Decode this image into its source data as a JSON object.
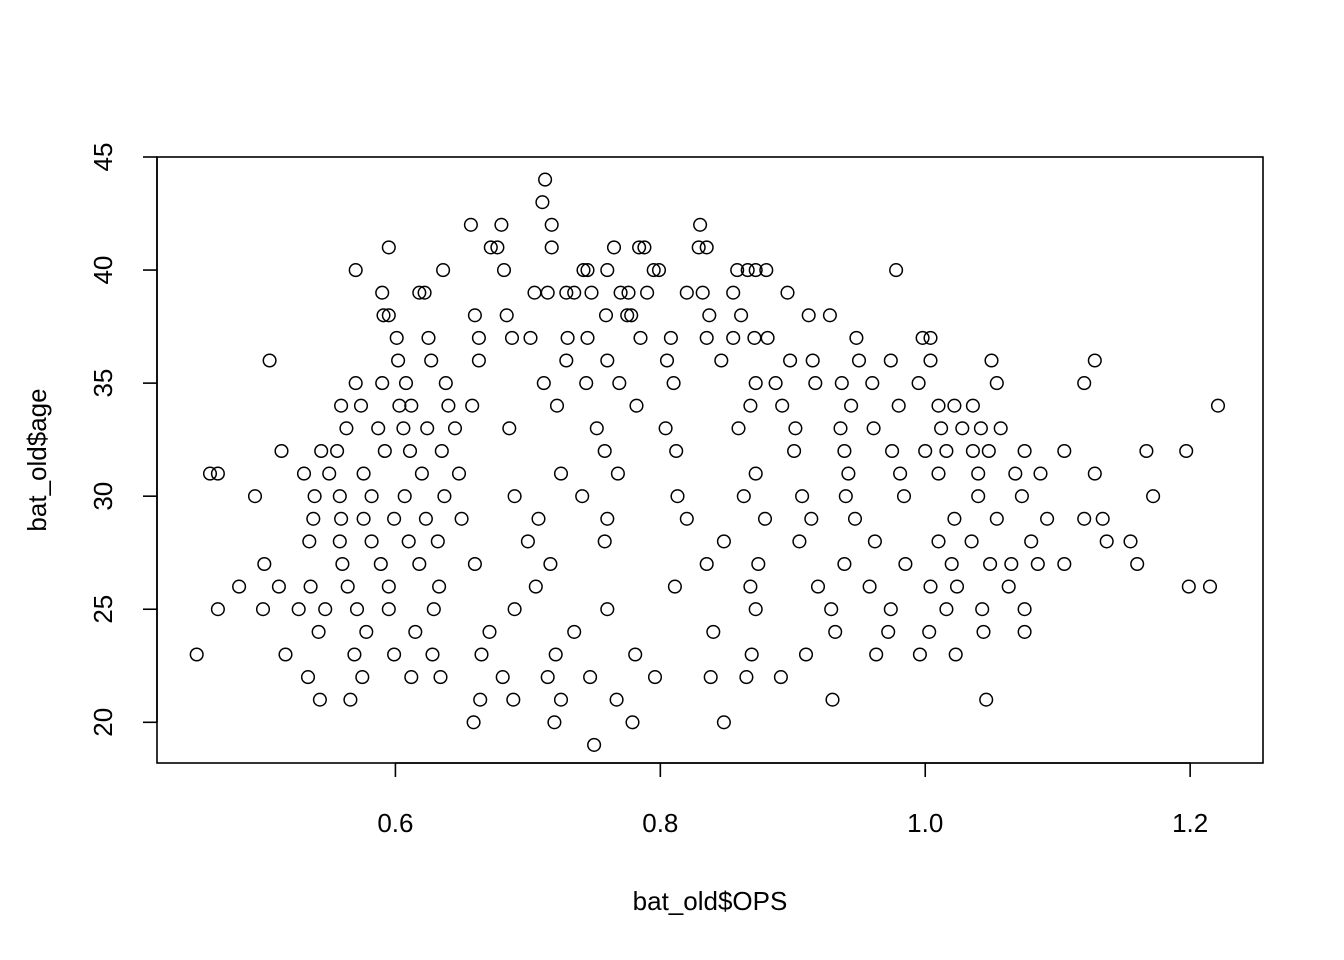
{
  "chart_data": {
    "type": "scatter",
    "title": "",
    "xlabel": "bat_old$OPS",
    "ylabel": "bat_old$age",
    "xlim": [
      0.42,
      1.255
    ],
    "ylim": [
      18.2,
      45
    ],
    "x_ticks": [
      0.6,
      0.8,
      1.0,
      1.2
    ],
    "x_tick_labels": [
      "0.6",
      "0.8",
      "1.0",
      "1.2"
    ],
    "y_ticks": [
      20,
      25,
      30,
      35,
      40,
      45
    ],
    "y_tick_labels": [
      "20",
      "25",
      "30",
      "35",
      "40",
      "45"
    ],
    "grid": false,
    "legend": "none",
    "marker": "open-circle",
    "point_color": "#000000",
    "series": [
      {
        "x": [
          0.713,
          0.711,
          0.657,
          0.68,
          0.718,
          0.83,
          0.595,
          0.672,
          0.677,
          0.718,
          0.765,
          0.784,
          0.788,
          0.835,
          0.829,
          0.57,
          0.636,
          0.682,
          0.76,
          0.742,
          0.745,
          0.795,
          0.799,
          0.858,
          0.872,
          0.866,
          0.88,
          0.978,
          0.59,
          0.618,
          0.622,
          0.705,
          0.715,
          0.729,
          0.735,
          0.748,
          0.77,
          0.776,
          0.79,
          0.82,
          0.832,
          0.855,
          0.896,
          0.591,
          0.595,
          0.66,
          0.684,
          0.759,
          0.775,
          0.778,
          0.837,
          0.861,
          0.912,
          0.928,
          0.601,
          0.625,
          0.663,
          0.688,
          0.702,
          0.73,
          0.745,
          0.785,
          0.808,
          0.835,
          0.855,
          0.871,
          0.881,
          0.948,
          0.998,
          1.004,
          0.505,
          0.602,
          0.627,
          0.663,
          0.729,
          0.76,
          0.805,
          0.846,
          0.898,
          0.915,
          0.95,
          0.974,
          1.004,
          1.05,
          1.12,
          1.128,
          0.57,
          0.59,
          0.608,
          0.638,
          0.712,
          0.744,
          0.769,
          0.81,
          0.872,
          0.887,
          0.917,
          0.937,
          0.96,
          0.995,
          1.054,
          0.559,
          0.574,
          0.603,
          0.612,
          0.64,
          0.658,
          0.722,
          0.782,
          0.868,
          0.892,
          0.944,
          0.98,
          1.01,
          1.022,
          1.036,
          1.221,
          0.563,
          0.587,
          0.606,
          0.624,
          0.645,
          0.686,
          0.752,
          0.804,
          0.859,
          0.902,
          0.936,
          0.961,
          1.012,
          1.028,
          1.042,
          1.057,
          0.514,
          0.544,
          0.556,
          0.592,
          0.611,
          0.635,
          0.758,
          0.812,
          0.901,
          0.939,
          0.975,
          1.0,
          1.016,
          1.036,
          1.048,
          1.075,
          1.105,
          1.167,
          1.197,
          0.46,
          0.466,
          0.531,
          0.55,
          0.576,
          0.62,
          0.648,
          0.725,
          0.768,
          0.872,
          0.942,
          0.981,
          1.01,
          1.04,
          1.068,
          1.087,
          1.128,
          0.494,
          0.539,
          0.558,
          0.582,
          0.607,
          0.637,
          0.69,
          0.741,
          0.813,
          0.863,
          0.907,
          0.94,
          0.984,
          1.04,
          1.073,
          1.172,
          0.538,
          0.559,
          0.576,
          0.599,
          0.623,
          0.65,
          0.708,
          0.76,
          0.82,
          0.879,
          0.914,
          0.947,
          1.022,
          1.054,
          1.092,
          1.12,
          1.134,
          0.535,
          0.558,
          0.582,
          0.61,
          0.632,
          0.7,
          0.758,
          0.848,
          0.905,
          0.962,
          1.01,
          1.035,
          1.08,
          1.137,
          1.155,
          0.501,
          0.56,
          0.589,
          0.618,
          0.66,
          0.717,
          0.835,
          0.874,
          0.939,
          0.985,
          1.02,
          1.049,
          1.065,
          1.085,
          1.105,
          1.16,
          0.482,
          0.512,
          0.536,
          0.564,
          0.595,
          0.633,
          0.706,
          0.811,
          0.868,
          0.919,
          0.958,
          1.004,
          1.024,
          1.063,
          1.199,
          1.215,
          0.466,
          0.5,
          0.527,
          0.547,
          0.571,
          0.595,
          0.629,
          0.69,
          0.76,
          0.872,
          0.929,
          0.974,
          1.016,
          1.043,
          1.075,
          0.542,
          0.578,
          0.615,
          0.671,
          0.735,
          0.84,
          0.932,
          0.972,
          1.003,
          1.044,
          1.075,
          0.45,
          0.517,
          0.569,
          0.599,
          0.628,
          0.665,
          0.721,
          0.781,
          0.869,
          0.91,
          0.963,
          0.996,
          1.023,
          0.534,
          0.575,
          0.612,
          0.634,
          0.681,
          0.715,
          0.747,
          0.796,
          0.838,
          0.865,
          0.891,
          0.543,
          0.566,
          0.664,
          0.689,
          0.725,
          0.767,
          0.93,
          1.046,
          0.659,
          0.72,
          0.779,
          0.848,
          0.75
        ],
        "y": [
          44,
          43,
          42,
          42,
          42,
          42,
          41,
          41,
          41,
          41,
          41,
          41,
          41,
          41,
          41,
          40,
          40,
          40,
          40,
          40,
          40,
          40,
          40,
          40,
          40,
          40,
          40,
          40,
          39,
          39,
          39,
          39,
          39,
          39,
          39,
          39,
          39,
          39,
          39,
          39,
          39,
          39,
          39,
          38,
          38,
          38,
          38,
          38,
          38,
          38,
          38,
          38,
          38,
          38,
          37,
          37,
          37,
          37,
          37,
          37,
          37,
          37,
          37,
          37,
          37,
          37,
          37,
          37,
          37,
          37,
          36,
          36,
          36,
          36,
          36,
          36,
          36,
          36,
          36,
          36,
          36,
          36,
          36,
          36,
          35,
          36,
          35,
          35,
          35,
          35,
          35,
          35,
          35,
          35,
          35,
          35,
          35,
          35,
          35,
          35,
          35,
          34,
          34,
          34,
          34,
          34,
          34,
          34,
          34,
          34,
          34,
          34,
          34,
          34,
          34,
          34,
          34,
          33,
          33,
          33,
          33,
          33,
          33,
          33,
          33,
          33,
          33,
          33,
          33,
          33,
          33,
          33,
          33,
          32,
          32,
          32,
          32,
          32,
          32,
          32,
          32,
          32,
          32,
          32,
          32,
          32,
          32,
          32,
          32,
          32,
          32,
          32,
          31,
          31,
          31,
          31,
          31,
          31,
          31,
          31,
          31,
          31,
          31,
          31,
          31,
          31,
          31,
          31,
          31,
          30,
          30,
          30,
          30,
          30,
          30,
          30,
          30,
          30,
          30,
          30,
          30,
          30,
          30,
          30,
          30,
          29,
          29,
          29,
          29,
          29,
          29,
          29,
          29,
          29,
          29,
          29,
          29,
          29,
          29,
          29,
          29,
          29,
          28,
          28,
          28,
          28,
          28,
          28,
          28,
          28,
          28,
          28,
          28,
          28,
          28,
          28,
          28,
          27,
          27,
          27,
          27,
          27,
          27,
          27,
          27,
          27,
          27,
          27,
          27,
          27,
          27,
          27,
          27,
          26,
          26,
          26,
          26,
          26,
          26,
          26,
          26,
          26,
          26,
          26,
          26,
          26,
          26,
          26,
          26,
          25,
          25,
          25,
          25,
          25,
          25,
          25,
          25,
          25,
          25,
          25,
          25,
          25,
          25,
          25,
          24,
          24,
          24,
          24,
          24,
          24,
          24,
          24,
          24,
          24,
          24,
          23,
          23,
          23,
          23,
          23,
          23,
          23,
          23,
          23,
          23,
          23,
          23,
          23,
          22,
          22,
          22,
          22,
          22,
          22,
          22,
          22,
          22,
          22,
          22,
          21,
          21,
          21,
          21,
          21,
          21,
          21,
          21,
          20,
          20,
          20,
          20,
          19
        ]
      }
    ]
  }
}
